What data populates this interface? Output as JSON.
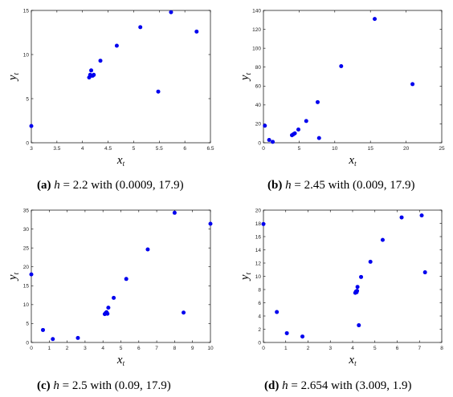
{
  "chart_data": [
    {
      "type": "scatter",
      "panel": "(a)",
      "caption": {
        "h_value": "2.2",
        "point": "(0.0009, 17.9)"
      },
      "xlabel": "x_t",
      "ylabel": "y_t",
      "xlim": [
        3,
        6.5
      ],
      "ylim": [
        0,
        15
      ],
      "xticks": [
        "3",
        "3.5",
        "4",
        "4.5",
        "5",
        "5.5",
        "6",
        "6.5"
      ],
      "yticks": [
        "0",
        "5",
        "10",
        "15"
      ],
      "series": [
        {
          "color": "#0000ee",
          "x": [
            3.0,
            4.13,
            4.15,
            4.18,
            4.2,
            4.17,
            4.22,
            4.35,
            4.67,
            5.13,
            5.48,
            5.73,
            6.23
          ],
          "y": [
            1.9,
            7.4,
            7.7,
            7.6,
            7.6,
            8.2,
            7.7,
            9.3,
            11.0,
            13.1,
            5.8,
            14.8,
            12.6
          ]
        }
      ]
    },
    {
      "type": "scatter",
      "panel": "(b)",
      "caption": {
        "h_value": "2.45",
        "point": "(0.009, 17.9)"
      },
      "xlabel": "x_t",
      "ylabel": "y_t",
      "xlim": [
        0,
        25
      ],
      "ylim": [
        0,
        140
      ],
      "xticks": [
        "0",
        "5",
        "10",
        "15",
        "20",
        "25"
      ],
      "yticks": [
        "0",
        "20",
        "40",
        "60",
        "80",
        "100",
        "120",
        "140"
      ],
      "series": [
        {
          "color": "#0000ee",
          "x": [
            0.2,
            0.8,
            1.3,
            4.0,
            4.2,
            4.4,
            4.9,
            6.0,
            7.6,
            7.8,
            10.9,
            15.6,
            20.9
          ],
          "y": [
            18,
            3,
            1,
            8,
            9,
            10,
            14,
            23,
            43,
            5,
            81,
            131,
            62
          ]
        }
      ]
    },
    {
      "type": "scatter",
      "panel": "(c)",
      "caption": {
        "h_value": "2.5",
        "point": "(0.09, 17.9)"
      },
      "xlabel": "x_t",
      "ylabel": "y_t",
      "xlim": [
        0,
        10
      ],
      "ylim": [
        0,
        35
      ],
      "xticks": [
        "0",
        "1",
        "2",
        "3",
        "4",
        "5",
        "6",
        "7",
        "8",
        "9",
        "10"
      ],
      "yticks": [
        "0",
        "5",
        "10",
        "15",
        "20",
        "25",
        "30",
        "35"
      ],
      "series": [
        {
          "color": "#0000ee",
          "x": [
            0.0,
            0.65,
            1.2,
            2.6,
            4.1,
            4.15,
            4.2,
            4.25,
            4.3,
            4.6,
            5.3,
            6.5,
            8.0,
            8.5,
            10.0
          ],
          "y": [
            18.0,
            3.3,
            0.9,
            1.2,
            7.5,
            7.8,
            8.0,
            7.6,
            9.2,
            11.8,
            16.8,
            24.6,
            34.3,
            7.9,
            31.4
          ]
        }
      ]
    },
    {
      "type": "scatter",
      "panel": "(d)",
      "caption": {
        "h_value": "2.654",
        "point": "(3.009, 1.9)"
      },
      "xlabel": "x_t",
      "ylabel": "y_t",
      "xlim": [
        0,
        8
      ],
      "ylim": [
        0,
        20
      ],
      "xticks": [
        "0",
        "1",
        "2",
        "3",
        "4",
        "5",
        "6",
        "7",
        "8"
      ],
      "yticks": [
        "0",
        "2",
        "4",
        "6",
        "8",
        "10",
        "12",
        "14",
        "16",
        "18",
        "20"
      ],
      "series": [
        {
          "color": "#0000ee",
          "x": [
            0.0,
            0.6,
            1.05,
            1.75,
            4.12,
            4.15,
            4.18,
            4.2,
            4.22,
            4.28,
            4.38,
            4.8,
            5.35,
            6.2,
            7.1,
            7.25
          ],
          "y": [
            17.9,
            4.6,
            1.4,
            0.9,
            7.5,
            7.7,
            7.6,
            7.8,
            8.4,
            2.6,
            9.9,
            12.2,
            15.5,
            18.9,
            19.2,
            10.6
          ]
        }
      ]
    }
  ],
  "caption_text": {
    "h_symbol": "h",
    "equals": " = ",
    "with": " with "
  }
}
